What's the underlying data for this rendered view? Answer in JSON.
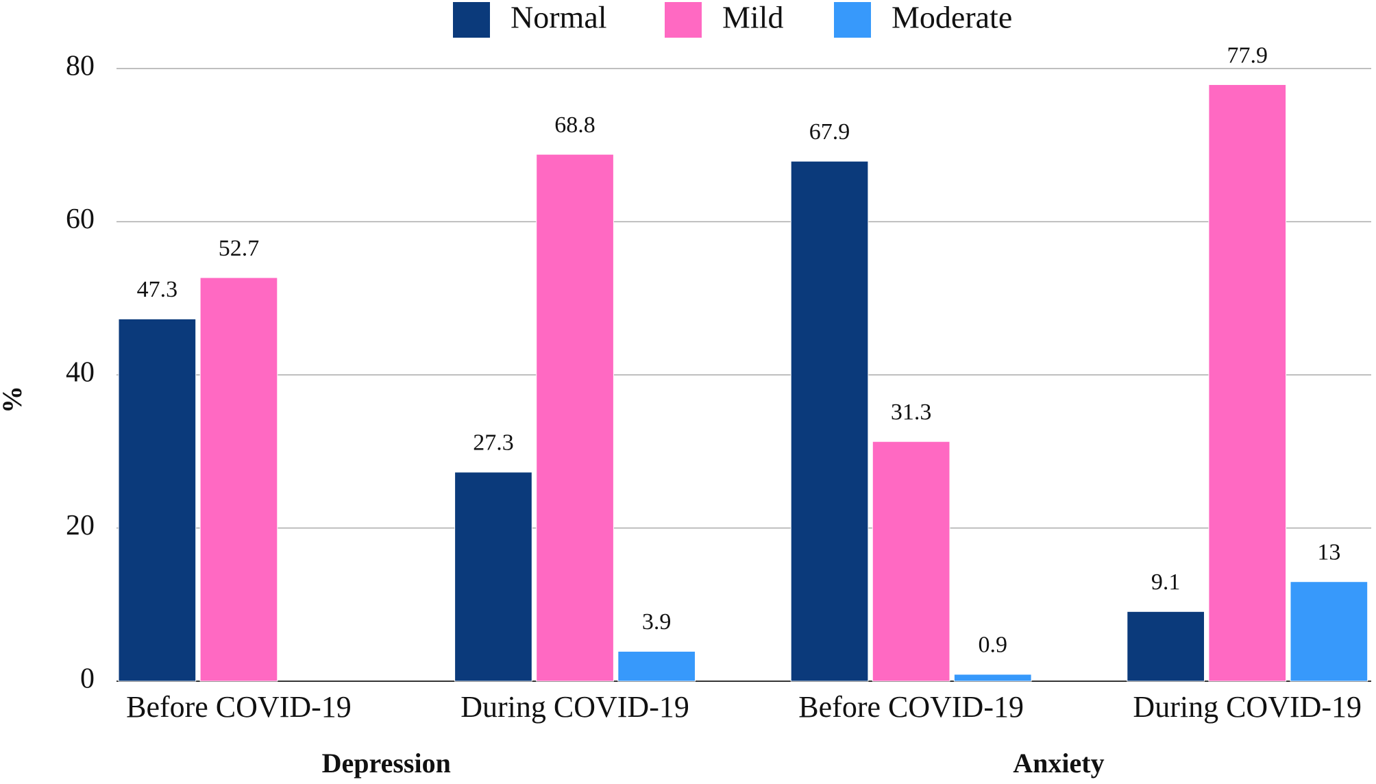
{
  "chart_data": {
    "type": "bar",
    "y_label": "%",
    "categories": [
      "Before COVID-19",
      "During COVID-19",
      "Before COVID-19",
      "During COVID-19"
    ],
    "group_labels": [
      "Depression",
      "Anxiety"
    ],
    "series": [
      {
        "name": "Normal",
        "color": "#0b3a7b",
        "values": [
          47.3,
          27.3,
          67.9,
          9.1
        ]
      },
      {
        "name": "Mild",
        "color": "#ff69c2",
        "values": [
          52.7,
          68.8,
          31.3,
          77.9
        ]
      },
      {
        "name": "Moderate",
        "color": "#3799fb",
        "values": [
          null,
          3.9,
          0.9,
          13
        ]
      }
    ],
    "ylim": [
      0,
      80
    ],
    "yticks": [
      0,
      20,
      40,
      60,
      80
    ],
    "grid": true,
    "legend": "top"
  }
}
